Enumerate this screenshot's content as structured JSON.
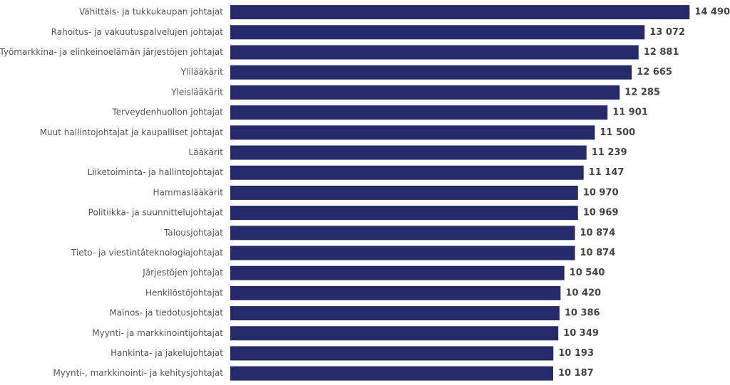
{
  "chart_data": {
    "type": "barh",
    "categories": [
      "Vähittäis- ja tukkukaupan johtajat",
      "Rahoitus- ja vakuutuspalvelujen johtajat",
      "Työmarkkina- ja elinkeinoelämän järjestöjen johtajat",
      "Ylilääkärit",
      "Yleislääkärit",
      "Terveydenhuollon johtajat",
      "Muut hallintojohtajat ja kaupalliset johtajat",
      "Lääkärit",
      "Liiketoiminta- ja hallintojohtajat",
      "Hammaslääkärit",
      "Politiikka- ja suunnittelujohtajat",
      "Talousjohtajat",
      "Tieto- ja viestintäteknologiajohtajat",
      "Järjestöjen johtajat",
      "Henkilöstöjohtajat",
      "Mainos- ja tiedotusjohtajat",
      "Myynti- ja markkinointijohtajat",
      "Hankinta- ja jakelujohtajat",
      "Myynti-, markkinointi- ja kehitysjohtajat"
    ],
    "values": [
      14490,
      13072,
      12881,
      12665,
      12285,
      11901,
      11500,
      11239,
      11147,
      10970,
      10969,
      10874,
      10874,
      10540,
      10420,
      10386,
      10349,
      10193,
      10187
    ],
    "value_labels": [
      "14 490",
      "13 072",
      "12 881",
      "12 665",
      "12 285",
      "11 901",
      "11 500",
      "11 239",
      "11 147",
      "10 970",
      "10 969",
      "10 874",
      "10 874",
      "10 540",
      "10 420",
      "10 386",
      "10 349",
      "10 193",
      "10 187"
    ],
    "color": "#252a6b",
    "xlim": [
      0,
      15000
    ]
  }
}
